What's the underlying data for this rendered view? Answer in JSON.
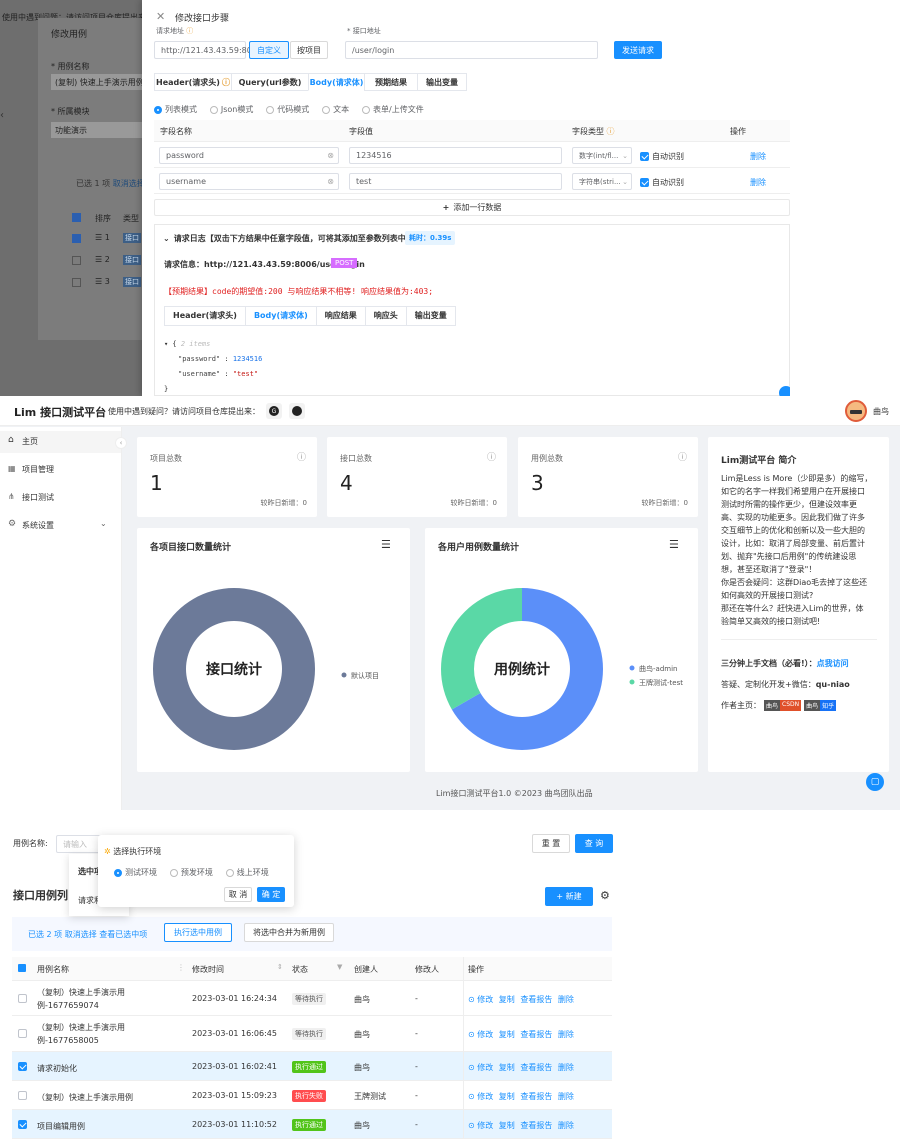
{
  "top_panel": {
    "bg_fragments": {
      "top_text": "使用中遇到问题：请访问项目仓库提出来",
      "dialog_title": "修改用例",
      "case_name_label": "* 用例名称",
      "case_name_value": "(复制) 快速上手演示用例",
      "module_label": "* 所属模块",
      "module_value": "功能演示",
      "selected_text": "已选 1 项",
      "cancel_select": "取消选择",
      "col_sort": "排序",
      "col_type": "类型",
      "rows": [
        "1",
        "2",
        "3"
      ],
      "type_tag": "接口"
    },
    "drawer_title": "修改接口步骤",
    "close_icon_label": "✕",
    "url_label": "请求地址",
    "url_value": "http://121.43.43.59:8006",
    "btn_custom": "自定义",
    "btn_project": "按项目",
    "path_label": "* 接口地址",
    "path_value": "/user/login",
    "send_btn": "发送请求",
    "tabs": [
      "Header(请求头)",
      "Query(url参数)",
      "Body(请求体)",
      "预期结果",
      "输出变量"
    ],
    "active_tab": "Body(请求体)",
    "modes": [
      "列表模式",
      "Json模式",
      "代码模式",
      "文本",
      "表单/上传文件"
    ],
    "table_headers": [
      "字段名称",
      "字段值",
      "字段类型",
      "操作"
    ],
    "params": [
      {
        "name": "password",
        "value": "1234516",
        "type": "数字(int/fl...",
        "auto": "自动识别",
        "action": "删除"
      },
      {
        "name": "username",
        "value": "test",
        "type": "字符串(stri...",
        "auto": "自动识别",
        "action": "删除"
      }
    ],
    "add_row": "添加一行数据",
    "log_title": "请求日志【双击下方结果中任意字段值，可将其添加至参数列表中】",
    "log_time": "耗时：0.39s",
    "req_info_label": "请求信息：http://121.43.43.59:8006/user/login",
    "method": "POST",
    "expect_msg": "【预期结果】code的期望值:200 与响应结果不相等! 响应结果值为:403;",
    "log_tabs": [
      "Header(请求头)",
      "Body(请求体)",
      "响应结果",
      "响应头",
      "输出变量"
    ],
    "json_comment": "2 items",
    "json_lines": [
      {
        "key": "\"password\"",
        "value": "1234516"
      },
      {
        "key": "\"username\"",
        "value": "\"test\""
      }
    ]
  },
  "dashboard": {
    "app_title": "Lim 接口测试平台",
    "help_text": "使用中遇到疑问？请访问项目仓库提出来：",
    "username": "曲鸟",
    "sidebar": [
      {
        "label": "主页",
        "icon": "home-icon"
      },
      {
        "label": "项目管理",
        "icon": "grid-icon"
      },
      {
        "label": "接口测试",
        "icon": "tree-icon"
      },
      {
        "label": "系统设置",
        "icon": "gear-icon"
      }
    ],
    "stats": [
      {
        "label": "项目总数",
        "value": "1",
        "sub": "较昨日新增：0"
      },
      {
        "label": "接口总数",
        "value": "4",
        "sub": "较昨日新增：0"
      },
      {
        "label": "用例总数",
        "value": "3",
        "sub": "较昨日新增：0"
      }
    ],
    "chart1_title": "各项目接口数量统计",
    "chart2_title": "各用户用例数量统计",
    "intro": {
      "title": "Lim测试平台 简介",
      "body": [
        "Lim是Less is More（少即是多）的缩写，",
        "如它的名字一样我们希望用户在开展接口",
        "测试时所需的操作更少，但建设效率更",
        "高、实现的功能更多。因此我们做了许多",
        "交互细节上的优化和创新以及一些大胆的",
        "设计，比如：取消了局部变量、前后置计",
        "划、抛弃\"先接口后用例\"的传统建设思",
        "想，甚至还取消了\"登录\"！",
        "你是否会疑问：这群Diao毛去掉了这些还",
        "如何高效的开展接口测试?",
        "那还在等什么？赶快进入Lim的世界，体",
        "验简单又高效的接口测试吧!"
      ],
      "doc_label": "三分钟上手文档（必看!）：",
      "doc_link": "点我访问",
      "contact": "答疑、定制化开发+微信：",
      "contact_id": "qu-niao",
      "author_label": "作者主页：",
      "badges": [
        {
          "left": "曲鸟",
          "right": "CSDN",
          "color": "#e0502a"
        },
        {
          "left": "曲鸟",
          "right": "知乎",
          "color": "#1772f6"
        }
      ]
    },
    "footer": "Lim接口测试平台1.0 ©2023 曲鸟团队出品"
  },
  "chart_data": [
    {
      "type": "pie",
      "title": "各项目接口数量统计",
      "center_label": "接口统计",
      "slices": [
        {
          "name": "默认项目",
          "value": 4,
          "color": "#6c7a99"
        }
      ]
    },
    {
      "type": "pie",
      "title": "各用户用例数量统计",
      "center_label": "用例统计",
      "slices": [
        {
          "name": "曲鸟-admin",
          "value": 2,
          "color": "#5b8ff9"
        },
        {
          "name": "王牌测试-test",
          "value": 1,
          "color": "#5ad8a6"
        }
      ]
    }
  ],
  "cases": {
    "search_label": "用例名称:",
    "search_placeholder": "请输入",
    "reset_btn": "重 置",
    "query_btn": "查 询",
    "popover_title": "选择执行环境",
    "envs": [
      "测试环境",
      "预发环境",
      "线上环境"
    ],
    "pop_cancel": "取 消",
    "pop_ok": "确 定",
    "hidden_text1": "选中项",
    "hidden_text2": "请求和",
    "list_title": "接口用例列",
    "new_btn": "+ 新建",
    "selected": "已选 2 项",
    "cancel_sel": "取消选择",
    "view_sel": "查看已选中项",
    "run_btn": "执行选中用例",
    "merge_btn": "将选中合并为新用例",
    "headers": [
      "用例名称",
      "修改时间",
      "状态",
      "创建人",
      "修改人",
      "操作"
    ],
    "rows": [
      {
        "name1": "（复制）快速上手演示用",
        "name2": "例-1677659074",
        "time": "2023-03-01 16:24:34",
        "status": "等待执行",
        "scolor": "#f0f0f0",
        "stext": "#555",
        "creator": "曲鸟",
        "modifier": "-",
        "checked": false
      },
      {
        "name1": "（复制）快速上手演示用",
        "name2": "例-1677658005",
        "time": "2023-03-01 16:06:45",
        "status": "等待执行",
        "scolor": "#f0f0f0",
        "stext": "#555",
        "creator": "曲鸟",
        "modifier": "-",
        "checked": false
      },
      {
        "name1": "请求初始化",
        "name2": "",
        "time": "2023-03-01 16:02:41",
        "status": "执行通过",
        "scolor": "#52c41a",
        "stext": "#fff",
        "creator": "曲鸟",
        "modifier": "-",
        "checked": true
      },
      {
        "name1": "（复制）快速上手演示用例",
        "name2": "",
        "time": "2023-03-01 15:09:23",
        "status": "执行失败",
        "scolor": "#ff4d4f",
        "stext": "#fff",
        "creator": "王牌测试",
        "modifier": "-",
        "checked": false
      },
      {
        "name1": "项目编辑用例",
        "name2": "",
        "time": "2023-03-01 11:10:52",
        "status": "执行通过",
        "scolor": "#52c41a",
        "stext": "#fff",
        "creator": "曲鸟",
        "modifier": "-",
        "checked": true
      }
    ],
    "ops": [
      "修改",
      "复制",
      "查看报告",
      "删除"
    ]
  }
}
